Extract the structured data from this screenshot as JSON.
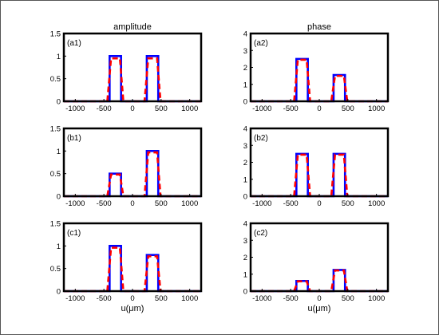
{
  "column_titles": [
    "amplitude",
    "phase"
  ],
  "x_axis_label": "u(μm)",
  "colors": {
    "solid": "#0000ff",
    "dashed": "#ff0000",
    "axes": "#000000"
  },
  "chart_data": [
    {
      "type": "line",
      "label": "(a1)",
      "xlim": [
        -1200,
        1200
      ],
      "ylim": [
        0,
        1.5
      ],
      "xticks": [
        -1000,
        -500,
        0,
        500,
        1000
      ],
      "xtick_labels": [
        "-1000",
        "-500",
        "0",
        "500",
        "1000"
      ],
      "yticks": [
        0,
        0.5,
        1,
        1.5
      ],
      "ytick_labels": [
        "0",
        "0.5",
        "1",
        "1.5"
      ],
      "series": [
        {
          "style": "solid",
          "x": [
            -1200,
            -400,
            -400,
            -200,
            -200,
            250,
            250,
            450,
            450,
            1200
          ],
          "y": [
            0,
            0,
            1,
            1,
            0,
            0,
            1,
            1,
            0,
            0
          ]
        },
        {
          "style": "dashed",
          "x": [
            -1200,
            -440,
            -375,
            -220,
            -160,
            210,
            275,
            430,
            490,
            1200
          ],
          "y": [
            0,
            0,
            0.95,
            0.95,
            0,
            0,
            0.95,
            0.95,
            0,
            0
          ]
        }
      ]
    },
    {
      "type": "line",
      "label": "(a2)",
      "xlim": [
        -1200,
        1200
      ],
      "ylim": [
        0,
        4
      ],
      "xticks": [
        -1000,
        -500,
        0,
        500,
        1000
      ],
      "xtick_labels": [
        "-1000",
        "-500",
        "0",
        "500",
        "1000"
      ],
      "yticks": [
        0,
        1,
        2,
        3,
        4
      ],
      "ytick_labels": [
        "0",
        "1",
        "2",
        "3",
        "4"
      ],
      "series": [
        {
          "style": "solid",
          "x": [
            -1200,
            -400,
            -400,
            -200,
            -200,
            250,
            250,
            450,
            450,
            1200
          ],
          "y": [
            0,
            0,
            2.5,
            2.5,
            0,
            0,
            1.55,
            1.55,
            0,
            0
          ]
        },
        {
          "style": "dashed",
          "x": [
            -1200,
            -440,
            -375,
            -220,
            -160,
            210,
            275,
            430,
            490,
            1200
          ],
          "y": [
            0,
            0,
            2.45,
            2.45,
            0,
            0,
            1.5,
            1.5,
            0,
            0
          ]
        }
      ]
    },
    {
      "type": "line",
      "label": "(b1)",
      "xlim": [
        -1200,
        1200
      ],
      "ylim": [
        0,
        1.5
      ],
      "xticks": [
        -1000,
        -500,
        0,
        500,
        1000
      ],
      "xtick_labels": [
        "-1000",
        "-500",
        "0",
        "500",
        "1000"
      ],
      "yticks": [
        0,
        0.5,
        1,
        1.5
      ],
      "ytick_labels": [
        "0",
        "0.5",
        "1",
        "1.5"
      ],
      "series": [
        {
          "style": "solid",
          "x": [
            -1200,
            -400,
            -400,
            -200,
            -200,
            250,
            250,
            450,
            450,
            1200
          ],
          "y": [
            0,
            0,
            0.5,
            0.5,
            0,
            0,
            1,
            1,
            0,
            0
          ]
        },
        {
          "style": "dashed",
          "x": [
            -1200,
            -440,
            -375,
            -220,
            -160,
            210,
            275,
            430,
            490,
            1200
          ],
          "y": [
            0,
            0,
            0.48,
            0.48,
            0,
            0,
            0.97,
            0.97,
            0,
            0
          ]
        }
      ]
    },
    {
      "type": "line",
      "label": "(b2)",
      "xlim": [
        -1200,
        1200
      ],
      "ylim": [
        0,
        4
      ],
      "xticks": [
        -1000,
        -500,
        0,
        500,
        1000
      ],
      "xtick_labels": [
        "-1000",
        "-500",
        "0",
        "500",
        "1000"
      ],
      "yticks": [
        0,
        1,
        2,
        3,
        4
      ],
      "ytick_labels": [
        "0",
        "1",
        "2",
        "3",
        "4"
      ],
      "series": [
        {
          "style": "solid",
          "x": [
            -1200,
            -400,
            -400,
            -200,
            -200,
            250,
            250,
            450,
            450,
            1200
          ],
          "y": [
            0,
            0,
            2.5,
            2.5,
            0,
            0,
            2.5,
            2.5,
            0,
            0
          ]
        },
        {
          "style": "dashed",
          "x": [
            -1200,
            -440,
            -375,
            -220,
            -160,
            210,
            275,
            430,
            490,
            1200
          ],
          "y": [
            0,
            0,
            2.45,
            2.45,
            0,
            0,
            2.45,
            2.45,
            0,
            0
          ]
        }
      ]
    },
    {
      "type": "line",
      "label": "(c1)",
      "xlim": [
        -1200,
        1200
      ],
      "ylim": [
        0,
        1.5
      ],
      "xticks": [
        -1000,
        -500,
        0,
        500,
        1000
      ],
      "xtick_labels": [
        "-1000",
        "-500",
        "0",
        "500",
        "1000"
      ],
      "yticks": [
        0,
        0.5,
        1,
        1.5
      ],
      "ytick_labels": [
        "0",
        "0.5",
        "1",
        "1.5"
      ],
      "series": [
        {
          "style": "solid",
          "x": [
            -1200,
            -400,
            -400,
            -200,
            -200,
            250,
            250,
            450,
            450,
            1200
          ],
          "y": [
            0,
            0,
            1,
            1,
            0,
            0,
            0.8,
            0.8,
            0,
            0
          ]
        },
        {
          "style": "dashed",
          "x": [
            -1200,
            -440,
            -375,
            -220,
            -160,
            210,
            275,
            430,
            490,
            1200
          ],
          "y": [
            0,
            0,
            0.96,
            0.96,
            0,
            0,
            0.77,
            0.77,
            0,
            0
          ]
        }
      ]
    },
    {
      "type": "line",
      "label": "(c2)",
      "xlim": [
        -1200,
        1200
      ],
      "ylim": [
        0,
        4
      ],
      "xticks": [
        -1000,
        -500,
        0,
        500,
        1000
      ],
      "xtick_labels": [
        "-1000",
        "-500",
        "0",
        "500",
        "1000"
      ],
      "yticks": [
        0,
        1,
        2,
        3,
        4
      ],
      "ytick_labels": [
        "0",
        "1",
        "2",
        "3",
        "4"
      ],
      "series": [
        {
          "style": "solid",
          "x": [
            -1200,
            -400,
            -400,
            -200,
            -200,
            250,
            250,
            450,
            450,
            1200
          ],
          "y": [
            0,
            0,
            0.6,
            0.6,
            0,
            0,
            1.25,
            1.25,
            0,
            0
          ]
        },
        {
          "style": "dashed",
          "x": [
            -1200,
            -440,
            -375,
            -220,
            -160,
            210,
            275,
            430,
            490,
            1200
          ],
          "y": [
            0,
            0,
            0.58,
            0.58,
            0,
            0,
            1.22,
            1.22,
            0,
            0
          ]
        }
      ]
    }
  ]
}
